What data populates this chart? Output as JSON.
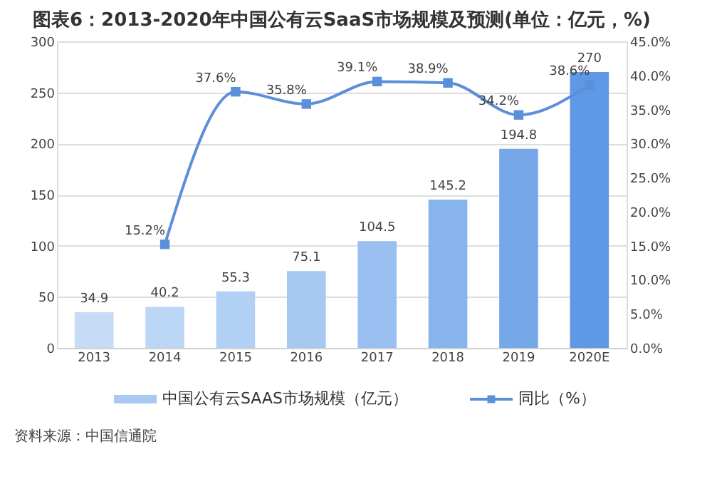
{
  "chart_data": {
    "type": "bar",
    "title": "图表6：2013-2020年中国公有云SaaS市场规模及预测(单位：亿元，%)",
    "categories": [
      "2013",
      "2014",
      "2015",
      "2016",
      "2017",
      "2018",
      "2019",
      "2020E"
    ],
    "series": [
      {
        "name": "中国公有云SAAS市场规模（亿元）",
        "color": "#a9c9f0",
        "colors": [
          "#c6dcf6",
          "#bcd6f5",
          "#b2d0f3",
          "#a6c8f1",
          "#98bfef",
          "#88b4ec",
          "#76a8e9",
          "#5f98e4"
        ],
        "values": [
          34.9,
          40.2,
          55.3,
          75.1,
          104.5,
          145.2,
          194.8,
          270
        ],
        "value_labels": [
          "34.9",
          "40.2",
          "55.3",
          "75.1",
          "104.5",
          "145.2",
          "194.8",
          "270"
        ]
      },
      {
        "name": "同比（%）",
        "type": "line",
        "axis": "y2",
        "color": "#5b8fd9",
        "marker": "square",
        "values": [
          null,
          15.2,
          37.6,
          35.8,
          39.1,
          38.9,
          34.2,
          38.6
        ],
        "value_labels": [
          null,
          "15.2%",
          "37.6%",
          "35.8%",
          "39.1%",
          "38.9%",
          "34.2%",
          "38.6%"
        ]
      }
    ],
    "ylim": [
      0,
      300
    ],
    "yticks": [
      0,
      50,
      100,
      150,
      200,
      250,
      300
    ],
    "y2lim": [
      0,
      45
    ],
    "y2ticks": [
      {
        "value": 0,
        "label": "0.0%"
      },
      {
        "value": 5,
        "label": "5.0%"
      },
      {
        "value": 10,
        "label": "10.0%"
      },
      {
        "value": 15,
        "label": "15.0%"
      },
      {
        "value": 20,
        "label": "20.0%"
      },
      {
        "value": 25,
        "label": "25.0%"
      },
      {
        "value": 30,
        "label": "30.0%"
      },
      {
        "value": 35,
        "label": "35.0%"
      },
      {
        "value": 40,
        "label": "40.0%"
      },
      {
        "value": 45,
        "label": "45.0%"
      }
    ],
    "grid": "y",
    "legend": "bottom",
    "annotations": [
      "资料来源：中国信通院"
    ]
  }
}
